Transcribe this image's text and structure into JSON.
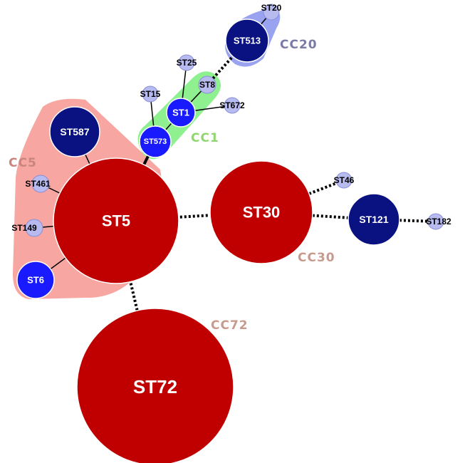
{
  "colors": {
    "dark_red": "#c00000",
    "navy": "#0a1282",
    "blue": "#1a1aff",
    "light_blue": "#b8bbf0",
    "hull_cc5": "#f7a6a1",
    "hull_cc1": "#8ef08e",
    "hull_cc20": "#9aa3f0",
    "label_cc5": "#c8857e",
    "label_cc1": "#8fd66f",
    "label_cc20": "#7a7aa6",
    "label_cc30": "#c89a8e",
    "label_cc72": "#c89a8e"
  },
  "clonal_complexes": [
    {
      "id": "cc5",
      "label": "CC5"
    },
    {
      "id": "cc1",
      "label": "CC1"
    },
    {
      "id": "cc20",
      "label": "CC20"
    },
    {
      "id": "cc30",
      "label": "CC30"
    },
    {
      "id": "cc72",
      "label": "CC72"
    }
  ],
  "nodes": [
    {
      "id": "st5",
      "label": "ST5",
      "type": "dark_red"
    },
    {
      "id": "st72",
      "label": "ST72",
      "type": "dark_red"
    },
    {
      "id": "st30",
      "label": "ST30",
      "type": "dark_red"
    },
    {
      "id": "st587",
      "label": "ST587",
      "type": "navy"
    },
    {
      "id": "st121",
      "label": "ST121",
      "type": "navy"
    },
    {
      "id": "st513",
      "label": "ST513",
      "type": "navy"
    },
    {
      "id": "st6",
      "label": "ST6",
      "type": "blue"
    },
    {
      "id": "st1",
      "label": "ST1",
      "type": "blue"
    },
    {
      "id": "st573",
      "label": "ST573",
      "type": "blue"
    },
    {
      "id": "st461",
      "label": "ST461",
      "type": "light_blue"
    },
    {
      "id": "st149",
      "label": "ST149",
      "type": "light_blue"
    },
    {
      "id": "st15",
      "label": "ST15",
      "type": "light_blue"
    },
    {
      "id": "st25",
      "label": "ST25",
      "type": "light_blue"
    },
    {
      "id": "st8",
      "label": "ST8",
      "type": "light_blue"
    },
    {
      "id": "st672",
      "label": "ST672",
      "type": "light_blue"
    },
    {
      "id": "st20",
      "label": "ST20",
      "type": "light_blue"
    },
    {
      "id": "st46",
      "label": "ST46",
      "type": "light_blue"
    },
    {
      "id": "st182",
      "label": "ST182",
      "type": "light_blue"
    }
  ],
  "edges": [
    {
      "from": "st5",
      "to": "st587",
      "style": "solid"
    },
    {
      "from": "st5",
      "to": "st461",
      "style": "solid"
    },
    {
      "from": "st5",
      "to": "st149",
      "style": "solid"
    },
    {
      "from": "st5",
      "to": "st6",
      "style": "solid"
    },
    {
      "from": "st5",
      "to": "st573",
      "style": "solid"
    },
    {
      "from": "st5",
      "to": "st30",
      "style": "dotted"
    },
    {
      "from": "st5",
      "to": "st72",
      "style": "dotted"
    },
    {
      "from": "st573",
      "to": "st1",
      "style": "solid"
    },
    {
      "from": "st573",
      "to": "st15",
      "style": "solid"
    },
    {
      "from": "st1",
      "to": "st25",
      "style": "solid"
    },
    {
      "from": "st1",
      "to": "st8",
      "style": "solid"
    },
    {
      "from": "st1",
      "to": "st672",
      "style": "solid"
    },
    {
      "from": "st8",
      "to": "st513",
      "style": "dotted"
    },
    {
      "from": "st513",
      "to": "st20",
      "style": "solid"
    },
    {
      "from": "st30",
      "to": "st121",
      "style": "dotted"
    },
    {
      "from": "st30",
      "to": "st46",
      "style": "dotted"
    },
    {
      "from": "st121",
      "to": "st182",
      "style": "dotted"
    }
  ]
}
